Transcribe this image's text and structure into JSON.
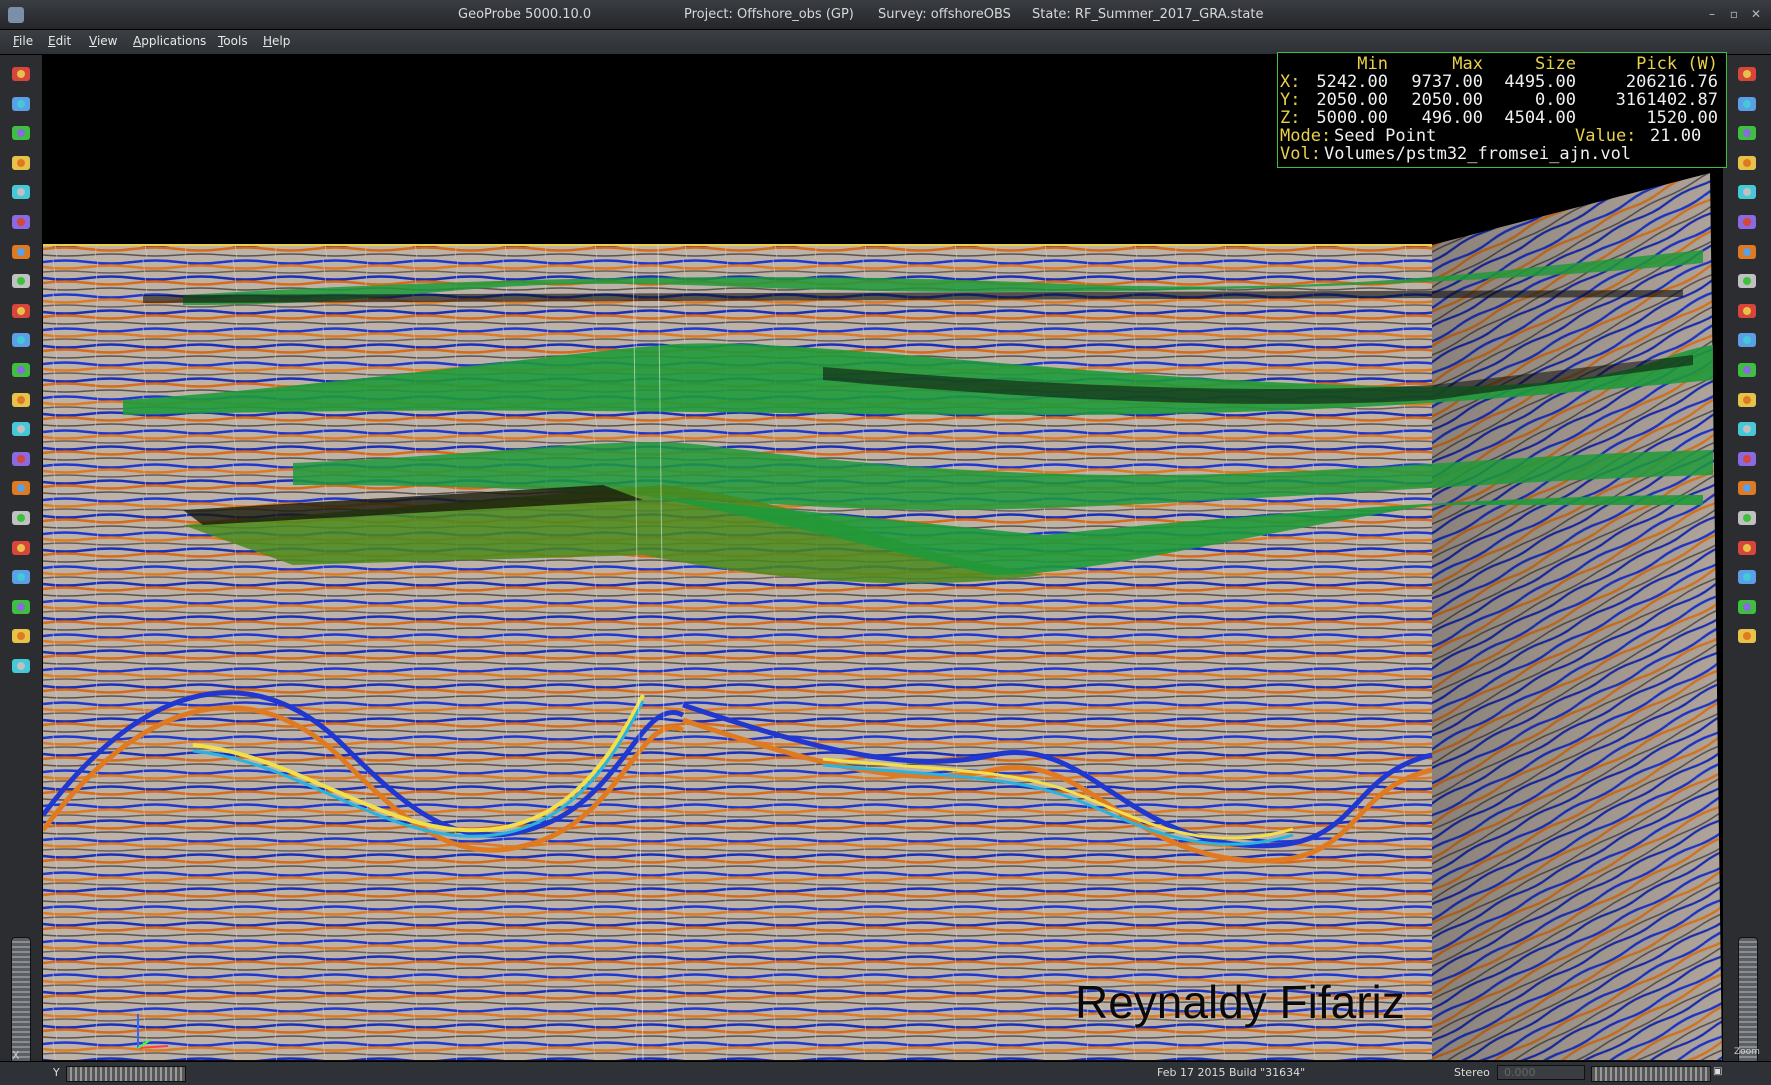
{
  "window": {
    "app_title": "GeoProbe 5000.10.0",
    "project": "Project: Offshore_obs (GP)",
    "survey": "Survey: offshoreOBS",
    "state": "State: RF_Summer_2017_GRA.state",
    "minimize": "–",
    "maximize": "▫",
    "close": "✕"
  },
  "menu": [
    "File",
    "Edit",
    "View",
    "Applications",
    "Tools",
    "Help"
  ],
  "info_panel": {
    "headers": [
      "Min",
      "Max",
      "Size",
      "Pick (W)"
    ],
    "rows": [
      {
        "axis": "X:",
        "min": "5242.00",
        "max": "9737.00",
        "size": "4495.00",
        "pick": "206216.76"
      },
      {
        "axis": "Y:",
        "min": "2050.00",
        "max": "2050.00",
        "size": "0.00",
        "pick": "3161402.87"
      },
      {
        "axis": "Z:",
        "min": "5000.00",
        "max": "496.00",
        "size": "4504.00",
        "pick": "1520.00"
      }
    ],
    "mode_label": "Mode:",
    "mode_value": "Seed Point",
    "value_label": "Value:",
    "value_value": "21.00",
    "vol_label": "Vol:",
    "vol_value": "Volumes/pstm32_fromsei_ajn.vol"
  },
  "watermark": "Reynaldy Fifariz",
  "statusbar": {
    "x_label": "X",
    "y_label": "Y",
    "build": "Feb 17 2015 Build \"31634\"",
    "stereo_label": "Stereo",
    "stereo_value": "0.000",
    "zoom_label": "Zoom"
  },
  "left_tools": [
    "home-icon",
    "save-icon",
    "tree-icon",
    "grid-icon",
    "cube-icon",
    "cube-alt-icon",
    "horizon-icon",
    "points-icon",
    "fault-icon",
    "surface-icon",
    "wave-icon",
    "plane-icon",
    "well-icon",
    "layers-icon",
    "pick-icon",
    "z-icon",
    "people-icon",
    "triangle-icon",
    "window-icon",
    "stack-icon",
    "chart-icon"
  ],
  "right_tools": [
    "hand-icon",
    "select-icon",
    "pencil-icon",
    "house-icon",
    "house2-icon",
    "gear-icon",
    "box-icon",
    "glasses-icon",
    "no-icon",
    "red-circle-icon",
    "cd-icon",
    "disk-icon",
    "pin-icon",
    "globe-icon",
    "blue1-icon",
    "blue2-icon",
    "blue3-icon",
    "grid2-icon",
    "blue4-icon",
    "book-icon"
  ],
  "colors": {
    "accent_green": "#3fbf3f",
    "label_yellow": "#e8d24a",
    "horizon_green": "#1f9a3a",
    "seismic_blue": "#2038d0",
    "seismic_orange": "#e07a20"
  }
}
